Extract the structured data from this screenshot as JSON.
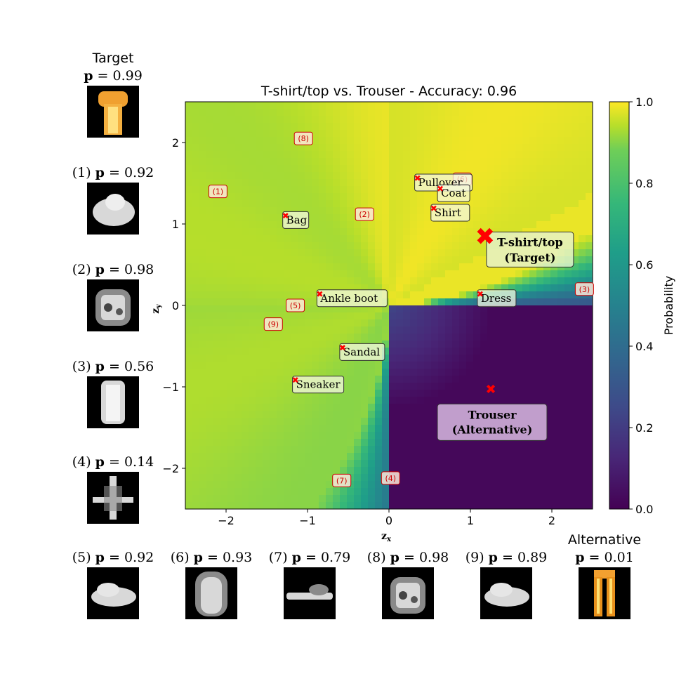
{
  "chart_data": {
    "type": "heatmap",
    "title": "T-shirt/top vs. Trouser - Accuracy: 0.96",
    "xlabel": "z",
    "xlabel_sub": "x",
    "ylabel": "z",
    "ylabel_sub": "y",
    "xlim": [
      -2.5,
      2.5
    ],
    "ylim": [
      -2.5,
      2.5
    ],
    "x_ticks": [
      -2,
      -1,
      0,
      1,
      2
    ],
    "y_ticks": [
      -2,
      -1,
      0,
      1,
      2
    ],
    "x_tick_labels": [
      "−2",
      "−1",
      "0",
      "1",
      "2"
    ],
    "y_tick_labels": [
      "−2",
      "−1",
      "0",
      "1",
      "2"
    ],
    "colormap": "viridis",
    "colorbar": {
      "label": "Probability",
      "range": [
        0.0,
        1.0
      ],
      "ticks": [
        0.0,
        0.2,
        0.4,
        0.6,
        0.8,
        1.0
      ],
      "tick_labels": [
        "0.0",
        "0.2",
        "0.4",
        "0.6",
        "0.8",
        "1.0"
      ]
    },
    "classes": [
      {
        "name": "Pullover",
        "x": 0.35,
        "y": 1.56
      },
      {
        "name": "Coat",
        "x": 0.63,
        "y": 1.43
      },
      {
        "name": "Shirt",
        "x": 0.55,
        "y": 1.19
      },
      {
        "name": "Bag",
        "x": -1.27,
        "y": 1.1
      },
      {
        "name": "Ankle boot",
        "x": -0.85,
        "y": 0.14
      },
      {
        "name": "Dress",
        "x": 1.12,
        "y": 0.14
      },
      {
        "name": "Sandal",
        "x": -0.57,
        "y": -0.52
      },
      {
        "name": "Sneaker",
        "x": -1.15,
        "y": -0.92
      }
    ],
    "target": {
      "name": "T-shirt/top",
      "role": "(Target)",
      "x": 1.18,
      "y": 0.85
    },
    "alternative": {
      "name": "Trouser",
      "role": "(Alternative)",
      "x": 1.25,
      "y": -1.02
    },
    "samples": [
      {
        "label": "(1)",
        "x": -2.1,
        "y": 1.4
      },
      {
        "label": "(2)",
        "x": -0.3,
        "y": 1.12
      },
      {
        "label": "(3)",
        "x": 2.4,
        "y": 0.2
      },
      {
        "label": "(4)",
        "x": 0.02,
        "y": -2.12
      },
      {
        "label": "(5)",
        "x": -1.15,
        "y": 0.0
      },
      {
        "label": "(6)",
        "x": 0.9,
        "y": 1.55
      },
      {
        "label": "(7)",
        "x": -0.58,
        "y": -2.15
      },
      {
        "label": "(8)",
        "x": -1.05,
        "y": 2.05
      },
      {
        "label": "(9)",
        "x": -1.42,
        "y": -0.23
      }
    ]
  },
  "panels": {
    "target_title": "Target",
    "alternative_title": "Alternative",
    "p_symbol": "p",
    "items": [
      {
        "key": "target",
        "num": "",
        "p": "= 0.99",
        "kind": "tshirt"
      },
      {
        "key": "1",
        "num": "(1)",
        "p": "= 0.92",
        "kind": "blob"
      },
      {
        "key": "2",
        "num": "(2)",
        "p": "= 0.98",
        "kind": "bag"
      },
      {
        "key": "3",
        "num": "(3)",
        "p": "= 0.56",
        "kind": "dress"
      },
      {
        "key": "4",
        "num": "(4)",
        "p": "= 0.14",
        "kind": "cross"
      },
      {
        "key": "5",
        "num": "(5)",
        "p": "= 0.92",
        "kind": "shoe"
      },
      {
        "key": "6",
        "num": "(6)",
        "p": "= 0.93",
        "kind": "arch"
      },
      {
        "key": "7",
        "num": "(7)",
        "p": "= 0.79",
        "kind": "sneaker"
      },
      {
        "key": "8",
        "num": "(8)",
        "p": "= 0.98",
        "kind": "bag"
      },
      {
        "key": "9",
        "num": "(9)",
        "p": "= 0.89",
        "kind": "shoe"
      },
      {
        "key": "alternative",
        "num": "",
        "p": "= 0.01",
        "kind": "trouser"
      }
    ]
  }
}
